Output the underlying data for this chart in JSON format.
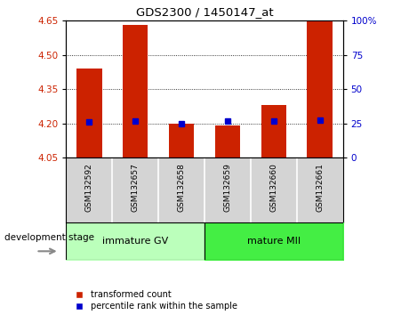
{
  "title": "GDS2300 / 1450147_at",
  "categories": [
    "GSM132592",
    "GSM132657",
    "GSM132658",
    "GSM132659",
    "GSM132660",
    "GSM132661"
  ],
  "bar_values": [
    4.44,
    4.63,
    4.2,
    4.19,
    4.28,
    4.67
  ],
  "bar_base": 4.05,
  "percentile_values": [
    4.205,
    4.208,
    4.2,
    4.21,
    4.21,
    4.215
  ],
  "ylim_left": [
    4.05,
    4.65
  ],
  "yticks_left": [
    4.05,
    4.2,
    4.35,
    4.5,
    4.65
  ],
  "yticks_right": [
    0,
    25,
    50,
    75,
    100
  ],
  "ylim_right": [
    0,
    100
  ],
  "bar_color": "#cc2200",
  "percentile_color": "#0000cc",
  "group1_label": "immature GV",
  "group2_label": "mature MII",
  "group1_color": "#bbffbb",
  "group2_color": "#44ee44",
  "dev_stage_label": "development stage",
  "legend_bar": "transformed count",
  "legend_pct": "percentile rank within the sample",
  "tick_color_left": "#cc2200",
  "tick_color_right": "#0000cc",
  "sample_bg": "#d4d4d4",
  "plot_bg": "#ffffff"
}
